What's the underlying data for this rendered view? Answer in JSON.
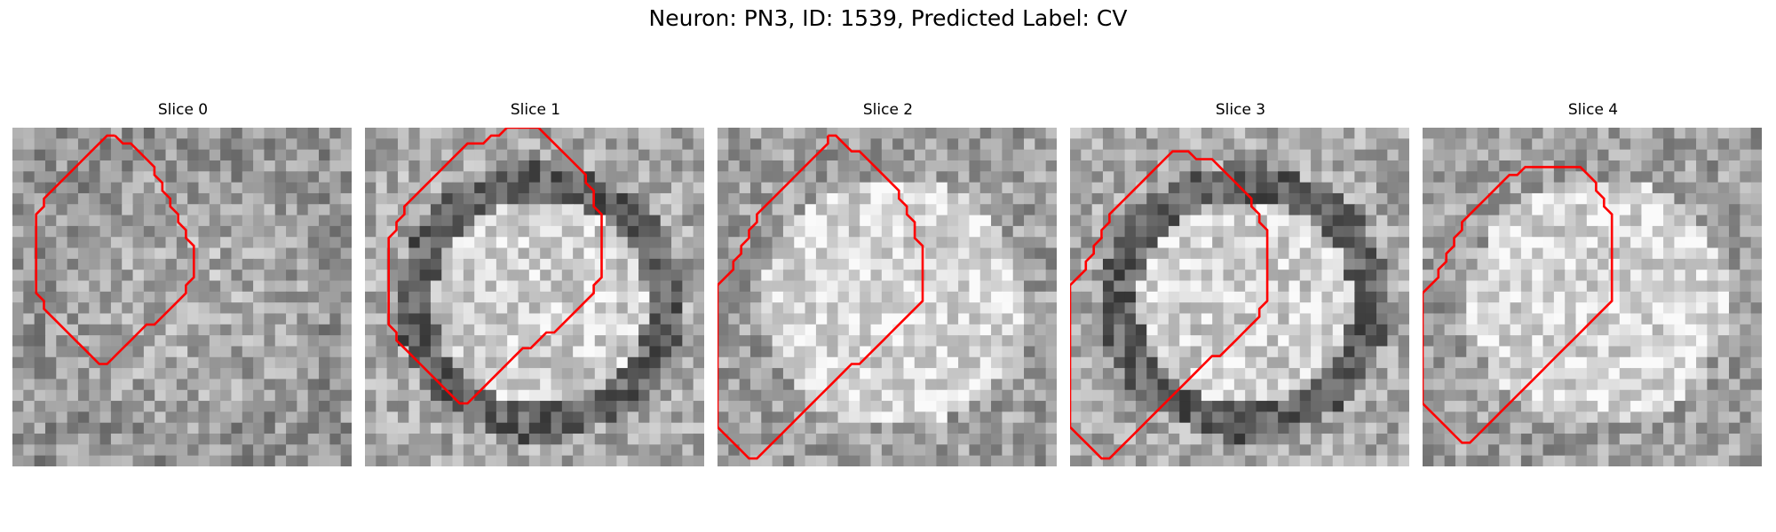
{
  "figure": {
    "title": "Neuron: PN3, ID: 1539, Predicted Label: CV",
    "contour_color": "#ff0000"
  },
  "slices": [
    {
      "label": "Slice 0",
      "contour": [
        [
          13,
          1
        ],
        [
          14,
          2
        ],
        [
          15,
          2
        ],
        [
          17,
          4
        ],
        [
          18,
          5
        ],
        [
          18,
          6
        ],
        [
          19,
          7
        ],
        [
          19,
          8
        ],
        [
          20,
          9
        ],
        [
          20,
          10
        ],
        [
          21,
          11
        ],
        [
          21,
          12
        ],
        [
          22,
          13
        ],
        [
          22,
          14
        ],
        [
          23,
          15
        ],
        [
          23,
          16
        ],
        [
          23,
          17
        ],
        [
          23,
          18
        ],
        [
          23,
          19
        ],
        [
          22,
          20
        ],
        [
          22,
          21
        ],
        [
          21,
          22
        ],
        [
          20,
          23
        ],
        [
          19,
          24
        ],
        [
          18,
          25
        ],
        [
          17,
          25
        ],
        [
          16,
          26
        ],
        [
          15,
          27
        ],
        [
          14,
          28
        ],
        [
          13,
          29
        ],
        [
          12,
          30
        ],
        [
          11,
          30
        ],
        [
          10,
          29
        ],
        [
          9,
          28
        ],
        [
          8,
          27
        ],
        [
          7,
          26
        ],
        [
          6,
          25
        ],
        [
          5,
          24
        ],
        [
          4,
          23
        ],
        [
          4,
          22
        ],
        [
          3,
          21
        ],
        [
          3,
          20
        ],
        [
          3,
          19
        ],
        [
          3,
          18
        ],
        [
          3,
          17
        ],
        [
          3,
          16
        ],
        [
          3,
          15
        ],
        [
          3,
          14
        ],
        [
          3,
          13
        ],
        [
          3,
          12
        ],
        [
          3,
          11
        ],
        [
          4,
          10
        ],
        [
          4,
          9
        ],
        [
          5,
          8
        ],
        [
          6,
          7
        ],
        [
          7,
          6
        ],
        [
          8,
          5
        ],
        [
          9,
          4
        ],
        [
          10,
          3
        ],
        [
          11,
          2
        ],
        [
          12,
          1
        ],
        [
          13,
          1
        ]
      ]
    },
    {
      "label": "Slice 1",
      "contour": [
        [
          22,
          0
        ],
        [
          23,
          1
        ],
        [
          24,
          2
        ],
        [
          25,
          3
        ],
        [
          26,
          4
        ],
        [
          27,
          5
        ],
        [
          28,
          6
        ],
        [
          28,
          7
        ],
        [
          29,
          8
        ],
        [
          29,
          9
        ],
        [
          29,
          10
        ],
        [
          30,
          11
        ],
        [
          30,
          12
        ],
        [
          30,
          13
        ],
        [
          30,
          14
        ],
        [
          30,
          15
        ],
        [
          30,
          16
        ],
        [
          30,
          17
        ],
        [
          30,
          18
        ],
        [
          30,
          19
        ],
        [
          29,
          20
        ],
        [
          29,
          21
        ],
        [
          28,
          22
        ],
        [
          27,
          23
        ],
        [
          26,
          24
        ],
        [
          25,
          25
        ],
        [
          24,
          26
        ],
        [
          23,
          26
        ],
        [
          22,
          27
        ],
        [
          21,
          28
        ],
        [
          20,
          28
        ],
        [
          19,
          29
        ],
        [
          18,
          30
        ],
        [
          17,
          31
        ],
        [
          16,
          32
        ],
        [
          15,
          33
        ],
        [
          14,
          34
        ],
        [
          13,
          35
        ],
        [
          12,
          35
        ],
        [
          11,
          34
        ],
        [
          10,
          33
        ],
        [
          9,
          32
        ],
        [
          8,
          31
        ],
        [
          7,
          30
        ],
        [
          6,
          29
        ],
        [
          5,
          28
        ],
        [
          4,
          27
        ],
        [
          4,
          26
        ],
        [
          3,
          25
        ],
        [
          3,
          24
        ],
        [
          3,
          23
        ],
        [
          3,
          22
        ],
        [
          3,
          21
        ],
        [
          3,
          20
        ],
        [
          3,
          19
        ],
        [
          3,
          18
        ],
        [
          3,
          17
        ],
        [
          3,
          16
        ],
        [
          3,
          15
        ],
        [
          3,
          14
        ],
        [
          4,
          13
        ],
        [
          4,
          12
        ],
        [
          5,
          11
        ],
        [
          5,
          10
        ],
        [
          6,
          9
        ],
        [
          7,
          8
        ],
        [
          8,
          7
        ],
        [
          9,
          6
        ],
        [
          10,
          5
        ],
        [
          11,
          4
        ],
        [
          12,
          3
        ],
        [
          13,
          2
        ],
        [
          14,
          2
        ],
        [
          15,
          2
        ],
        [
          16,
          1
        ],
        [
          17,
          1
        ],
        [
          18,
          0
        ],
        [
          19,
          0
        ],
        [
          20,
          0
        ],
        [
          21,
          0
        ],
        [
          22,
          0
        ]
      ]
    },
    {
      "label": "Slice 2",
      "contour": [
        [
          14,
          1
        ],
        [
          15,
          1
        ],
        [
          16,
          2
        ],
        [
          17,
          3
        ],
        [
          18,
          3
        ],
        [
          19,
          4
        ],
        [
          20,
          5
        ],
        [
          21,
          6
        ],
        [
          22,
          7
        ],
        [
          23,
          8
        ],
        [
          23,
          9
        ],
        [
          24,
          10
        ],
        [
          24,
          11
        ],
        [
          25,
          12
        ],
        [
          25,
          13
        ],
        [
          25,
          14
        ],
        [
          26,
          15
        ],
        [
          26,
          16
        ],
        [
          26,
          17
        ],
        [
          26,
          18
        ],
        [
          26,
          19
        ],
        [
          26,
          20
        ],
        [
          26,
          21
        ],
        [
          26,
          22
        ],
        [
          25,
          23
        ],
        [
          24,
          24
        ],
        [
          23,
          25
        ],
        [
          22,
          26
        ],
        [
          21,
          27
        ],
        [
          20,
          28
        ],
        [
          19,
          29
        ],
        [
          18,
          30
        ],
        [
          17,
          30
        ],
        [
          16,
          31
        ],
        [
          15,
          32
        ],
        [
          14,
          33
        ],
        [
          13,
          34
        ],
        [
          12,
          35
        ],
        [
          11,
          36
        ],
        [
          10,
          37
        ],
        [
          9,
          38
        ],
        [
          8,
          39
        ],
        [
          7,
          40
        ],
        [
          6,
          41
        ],
        [
          5,
          42
        ],
        [
          4,
          42
        ],
        [
          3,
          41
        ],
        [
          2,
          40
        ],
        [
          1,
          39
        ],
        [
          0,
          38
        ],
        [
          0,
          37
        ],
        [
          0,
          36
        ],
        [
          0,
          35
        ],
        [
          0,
          34
        ],
        [
          0,
          33
        ],
        [
          0,
          32
        ],
        [
          0,
          31
        ],
        [
          0,
          30
        ],
        [
          0,
          29
        ],
        [
          0,
          28
        ],
        [
          0,
          27
        ],
        [
          0,
          26
        ],
        [
          0,
          25
        ],
        [
          0,
          24
        ],
        [
          0,
          23
        ],
        [
          0,
          22
        ],
        [
          0,
          21
        ],
        [
          0,
          20
        ],
        [
          1,
          19
        ],
        [
          2,
          18
        ],
        [
          2,
          17
        ],
        [
          3,
          16
        ],
        [
          3,
          15
        ],
        [
          4,
          14
        ],
        [
          4,
          13
        ],
        [
          5,
          12
        ],
        [
          5,
          11
        ],
        [
          6,
          10
        ],
        [
          7,
          9
        ],
        [
          8,
          8
        ],
        [
          9,
          7
        ],
        [
          10,
          6
        ],
        [
          11,
          5
        ],
        [
          12,
          4
        ],
        [
          13,
          3
        ],
        [
          14,
          2
        ],
        [
          14,
          1
        ]
      ]
    },
    {
      "label": "Slice 3",
      "contour": [
        [
          14,
          3
        ],
        [
          15,
          3
        ],
        [
          16,
          4
        ],
        [
          17,
          4
        ],
        [
          18,
          4
        ],
        [
          19,
          5
        ],
        [
          20,
          6
        ],
        [
          21,
          7
        ],
        [
          22,
          8
        ],
        [
          23,
          9
        ],
        [
          23,
          10
        ],
        [
          24,
          11
        ],
        [
          24,
          12
        ],
        [
          25,
          13
        ],
        [
          25,
          14
        ],
        [
          25,
          15
        ],
        [
          25,
          16
        ],
        [
          25,
          17
        ],
        [
          25,
          18
        ],
        [
          25,
          19
        ],
        [
          25,
          20
        ],
        [
          25,
          21
        ],
        [
          25,
          22
        ],
        [
          24,
          23
        ],
        [
          24,
          24
        ],
        [
          23,
          25
        ],
        [
          22,
          26
        ],
        [
          21,
          27
        ],
        [
          20,
          28
        ],
        [
          19,
          29
        ],
        [
          18,
          29
        ],
        [
          17,
          30
        ],
        [
          16,
          31
        ],
        [
          15,
          32
        ],
        [
          14,
          33
        ],
        [
          13,
          34
        ],
        [
          12,
          35
        ],
        [
          11,
          36
        ],
        [
          10,
          37
        ],
        [
          9,
          38
        ],
        [
          8,
          39
        ],
        [
          7,
          40
        ],
        [
          6,
          41
        ],
        [
          5,
          42
        ],
        [
          4,
          42
        ],
        [
          3,
          41
        ],
        [
          2,
          40
        ],
        [
          1,
          39
        ],
        [
          0,
          38
        ],
        [
          0,
          37
        ],
        [
          0,
          36
        ],
        [
          0,
          35
        ],
        [
          0,
          34
        ],
        [
          0,
          33
        ],
        [
          0,
          32
        ],
        [
          0,
          31
        ],
        [
          0,
          30
        ],
        [
          0,
          29
        ],
        [
          0,
          28
        ],
        [
          0,
          27
        ],
        [
          0,
          26
        ],
        [
          0,
          25
        ],
        [
          0,
          24
        ],
        [
          0,
          23
        ],
        [
          0,
          22
        ],
        [
          0,
          21
        ],
        [
          0,
          20
        ],
        [
          1,
          19
        ],
        [
          2,
          18
        ],
        [
          2,
          17
        ],
        [
          3,
          16
        ],
        [
          3,
          15
        ],
        [
          4,
          14
        ],
        [
          4,
          13
        ],
        [
          5,
          12
        ],
        [
          5,
          11
        ],
        [
          6,
          10
        ],
        [
          7,
          9
        ],
        [
          8,
          8
        ],
        [
          9,
          7
        ],
        [
          10,
          6
        ],
        [
          11,
          5
        ],
        [
          12,
          4
        ],
        [
          13,
          3
        ],
        [
          14,
          3
        ]
      ]
    },
    {
      "label": "Slice 4",
      "contour": [
        [
          16,
          5
        ],
        [
          17,
          5
        ],
        [
          18,
          5
        ],
        [
          19,
          5
        ],
        [
          20,
          5
        ],
        [
          21,
          6
        ],
        [
          22,
          7
        ],
        [
          22,
          8
        ],
        [
          23,
          9
        ],
        [
          23,
          10
        ],
        [
          24,
          11
        ],
        [
          24,
          12
        ],
        [
          24,
          13
        ],
        [
          24,
          14
        ],
        [
          24,
          15
        ],
        [
          24,
          16
        ],
        [
          24,
          17
        ],
        [
          24,
          18
        ],
        [
          24,
          19
        ],
        [
          24,
          20
        ],
        [
          24,
          21
        ],
        [
          24,
          22
        ],
        [
          23,
          23
        ],
        [
          22,
          24
        ],
        [
          21,
          25
        ],
        [
          20,
          26
        ],
        [
          19,
          27
        ],
        [
          18,
          28
        ],
        [
          17,
          29
        ],
        [
          16,
          30
        ],
        [
          15,
          31
        ],
        [
          14,
          32
        ],
        [
          13,
          33
        ],
        [
          12,
          34
        ],
        [
          11,
          35
        ],
        [
          10,
          36
        ],
        [
          9,
          37
        ],
        [
          8,
          38
        ],
        [
          7,
          39
        ],
        [
          6,
          40
        ],
        [
          5,
          40
        ],
        [
          4,
          39
        ],
        [
          3,
          38
        ],
        [
          2,
          37
        ],
        [
          1,
          36
        ],
        [
          0,
          35
        ],
        [
          0,
          34
        ],
        [
          0,
          33
        ],
        [
          0,
          32
        ],
        [
          0,
          31
        ],
        [
          0,
          30
        ],
        [
          0,
          29
        ],
        [
          0,
          28
        ],
        [
          0,
          27
        ],
        [
          0,
          26
        ],
        [
          0,
          25
        ],
        [
          0,
          24
        ],
        [
          0,
          23
        ],
        [
          0,
          22
        ],
        [
          0,
          21
        ],
        [
          1,
          20
        ],
        [
          2,
          19
        ],
        [
          2,
          18
        ],
        [
          3,
          17
        ],
        [
          3,
          16
        ],
        [
          4,
          15
        ],
        [
          4,
          14
        ],
        [
          5,
          13
        ],
        [
          5,
          12
        ],
        [
          6,
          11
        ],
        [
          7,
          10
        ],
        [
          8,
          9
        ],
        [
          9,
          8
        ],
        [
          10,
          7
        ],
        [
          11,
          6
        ],
        [
          12,
          6
        ],
        [
          13,
          5
        ],
        [
          14,
          5
        ],
        [
          15,
          5
        ],
        [
          16,
          5
        ]
      ]
    }
  ]
}
